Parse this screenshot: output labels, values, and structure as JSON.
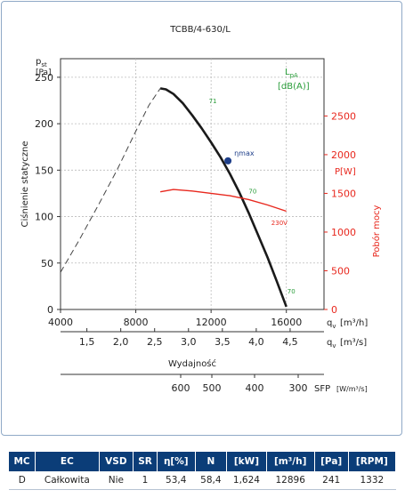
{
  "colors": {
    "curve": "#1a1a1a",
    "power": "#e8281e",
    "green": "#2a9d3a",
    "point": "#1f3f8a",
    "frame": "#8fa9c7",
    "header": "#0b3d78"
  },
  "chart_data": {
    "type": "line",
    "title": "TCBB/4-630/L",
    "xlabel": "Wydajność",
    "ylabel": "Ciśnienie statyczne",
    "y_symbol": "p",
    "y_symbol_sub": "st",
    "y_unit": "[Pa]",
    "y2_label": "Pobór mocy",
    "y2_symbol": "P[W]",
    "xlim": [
      4000,
      18000
    ],
    "ylim": [
      0,
      270
    ],
    "y2lim": [
      0,
      3240
    ],
    "x_ticks": [
      "4000",
      "8000",
      "12000",
      "16000"
    ],
    "y_ticks": [
      "0",
      "50",
      "100",
      "150",
      "200",
      "250"
    ],
    "y2_ticks": [
      "0",
      "500",
      "1000",
      "1500",
      "2000",
      "2500"
    ],
    "x_symbol": "q",
    "x_symbol_sub": "v",
    "x_unit": "[m³/h]",
    "x2_symbol": "q",
    "x2_symbol_sub": "v",
    "x2_unit": "[m³/s]",
    "x2_ticks": [
      "1,5",
      "2,0",
      "2,5",
      "3,0",
      "3,5",
      "4,0",
      "4,5"
    ],
    "sfp_ticks": [
      "600",
      "500",
      "400",
      "300"
    ],
    "sfp_label": "SFP",
    "sfp_unit": "[W/m³/s]",
    "lpa_label": "L",
    "lpa_sub": "pA",
    "lpa_unit": "[dB(A)]",
    "series": [
      {
        "kind": "pressure-stable",
        "x": [
          9300,
          9600,
          10000,
          10500,
          11000,
          11500,
          12000,
          12500,
          13000,
          13500,
          14000,
          14500,
          15000,
          15500,
          16000
        ],
        "y": [
          238,
          237,
          232,
          222,
          209,
          195,
          180,
          164,
          146,
          126,
          104,
          80,
          56,
          30,
          3
        ]
      },
      {
        "kind": "pressure-unstable",
        "x": [
          4000,
          5000,
          6000,
          7000,
          8000,
          8700,
          9300
        ],
        "y": [
          40,
          75,
          112,
          150,
          192,
          220,
          238
        ]
      },
      {
        "name": "230V",
        "axis": "y2",
        "x": [
          9300,
          10000,
          11000,
          12000,
          13000,
          14000,
          15000,
          16000
        ],
        "y": [
          1520,
          1550,
          1530,
          1500,
          1470,
          1420,
          1350,
          1270
        ]
      }
    ],
    "sound_labels": [
      {
        "text": "71",
        "x": 11880,
        "y": 222
      },
      {
        "text": "70",
        "x": 14000,
        "y": 125
      },
      {
        "text": "70",
        "x": 16050,
        "y": 17
      }
    ],
    "power_label": {
      "text": "230V",
      "x": 15200,
      "y": 91
    },
    "operating_point": {
      "x": 12896,
      "y": 160,
      "label": "ηmax"
    }
  },
  "table": {
    "headers": [
      "MC",
      "EC",
      "VSD",
      "SR",
      "η[%]",
      "N",
      "[kW]",
      "[m³/h]",
      "[Pa]",
      "[RPM]"
    ],
    "rows": [
      [
        "D",
        "Całkowita",
        "Nie",
        "1",
        "53,4",
        "58,4",
        "1,624",
        "12896",
        "241",
        "1332"
      ]
    ]
  }
}
